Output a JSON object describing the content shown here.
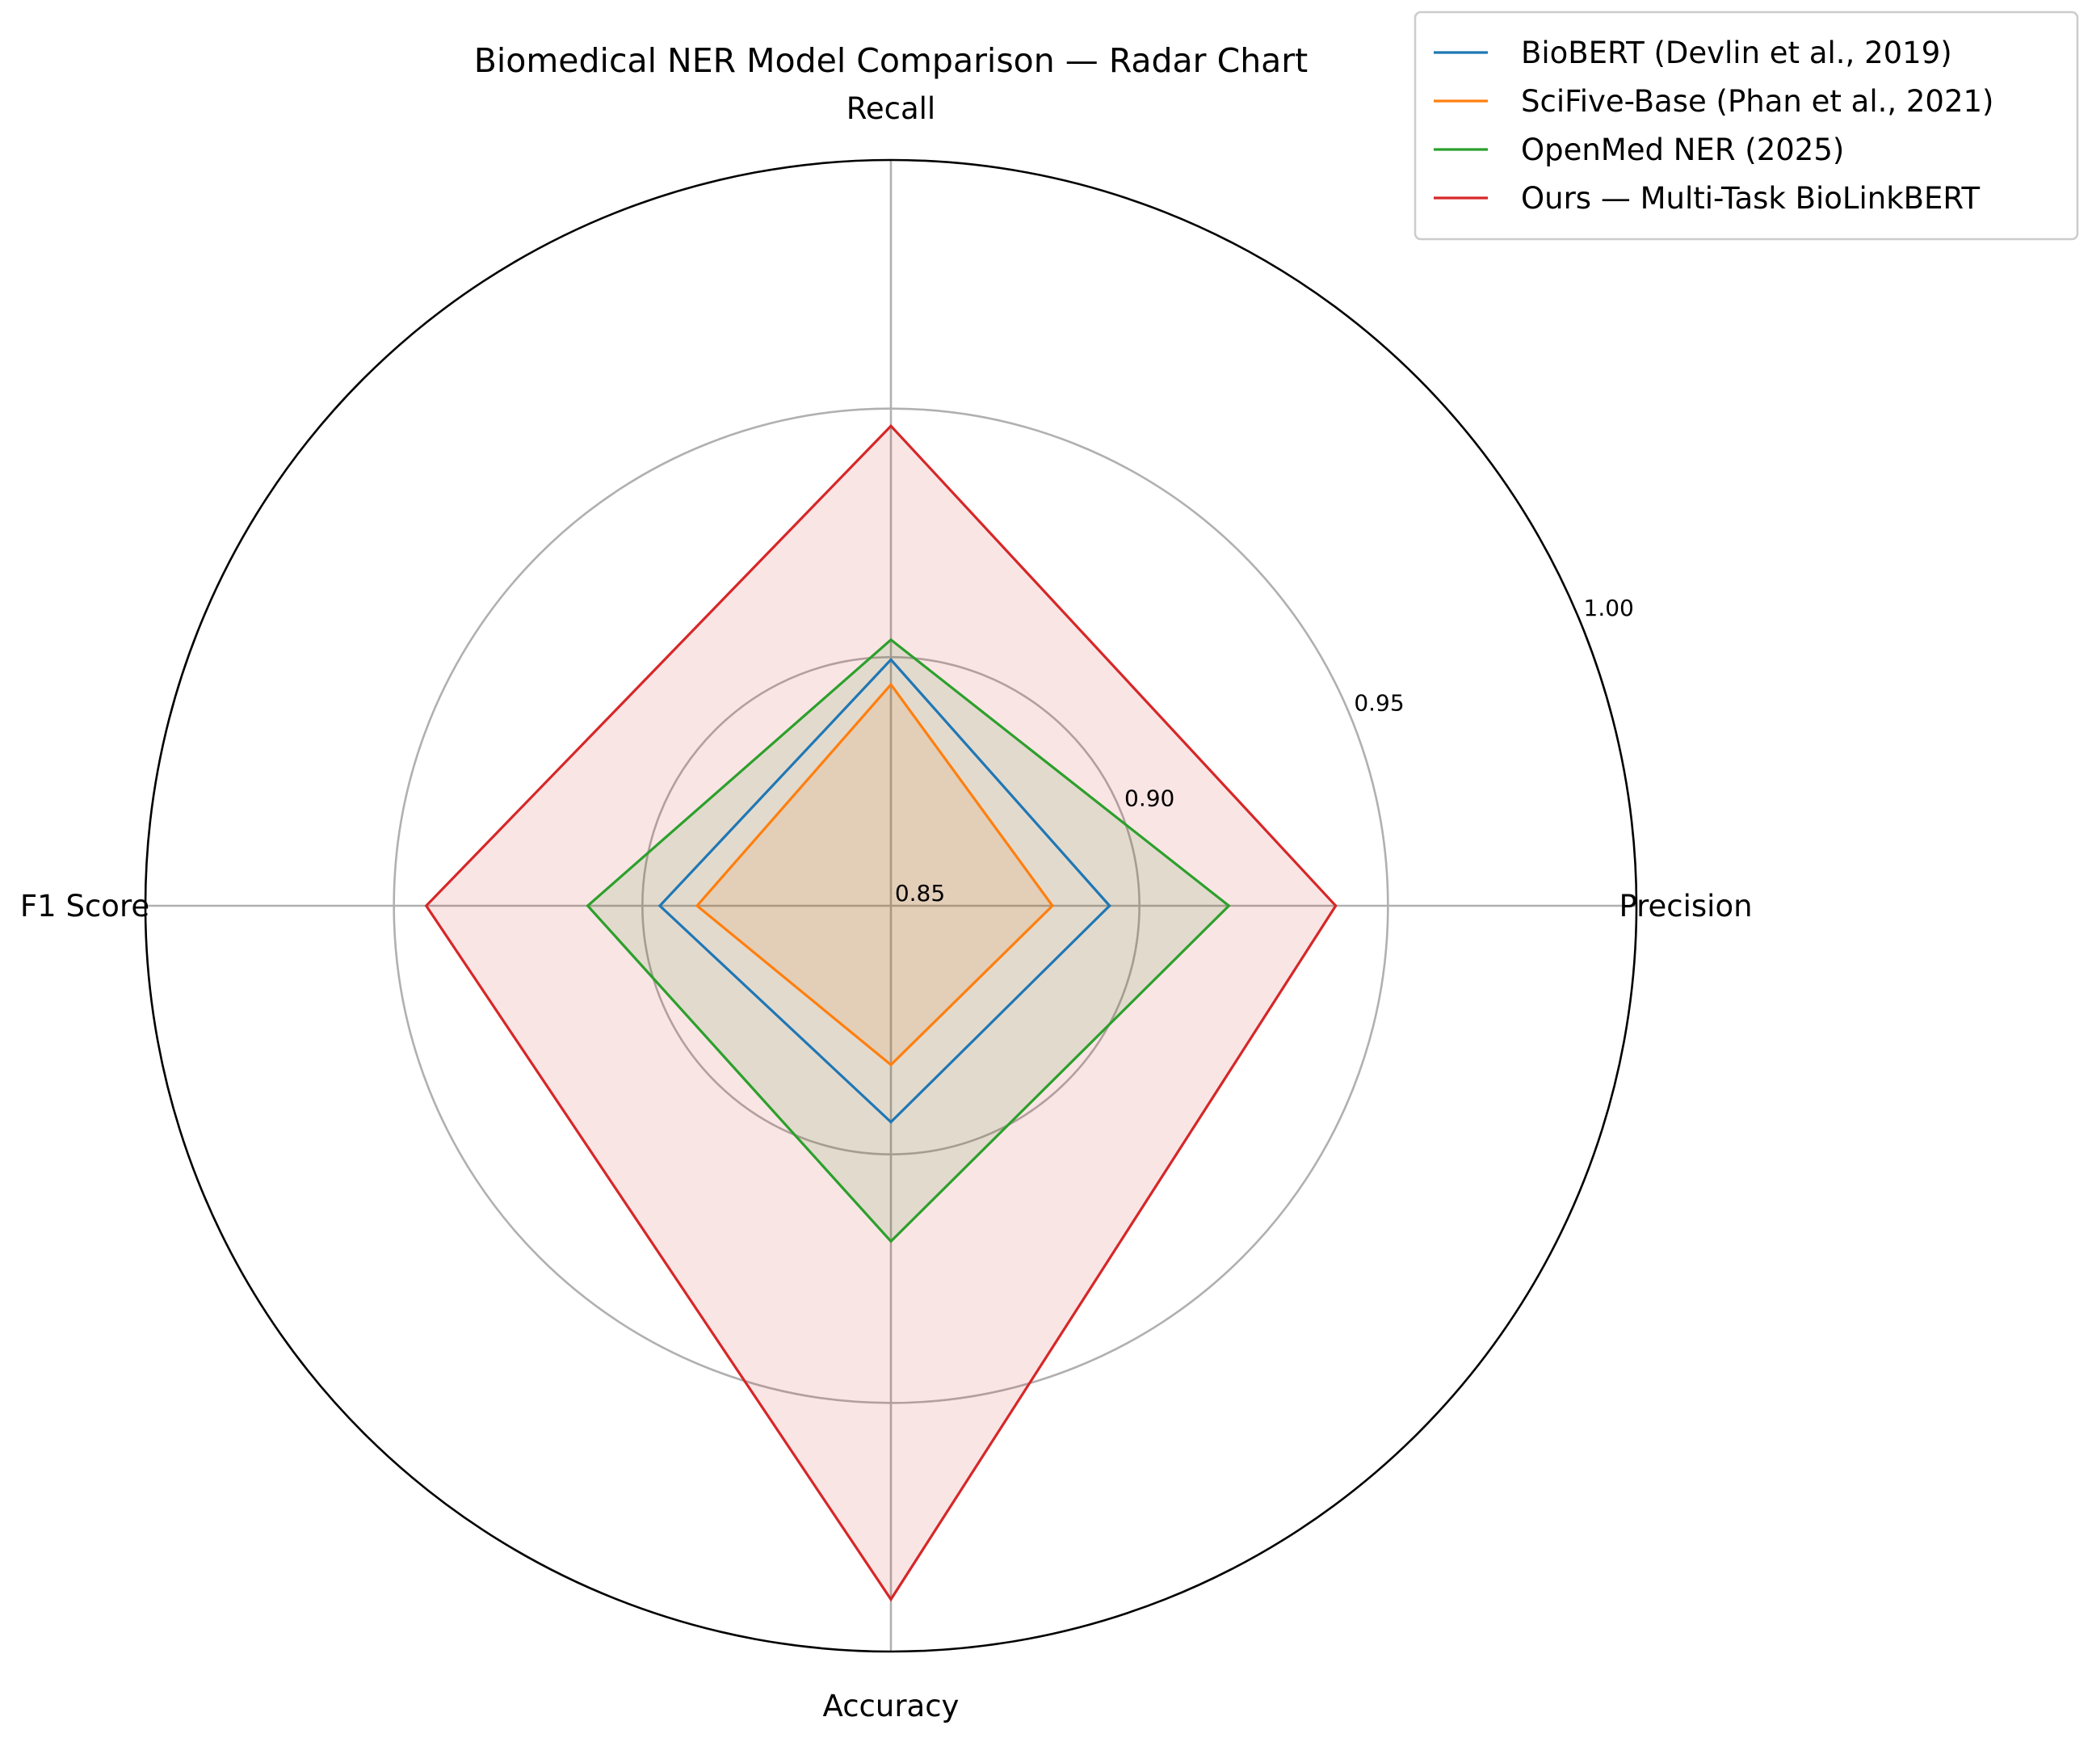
{
  "chart_data": {
    "type": "radar",
    "title": "Biomedical NER Model Comparison — Radar Chart",
    "axes": [
      "Precision",
      "Recall",
      "F1 Score",
      "Accuracy"
    ],
    "radial_range": [
      0.85,
      1.0
    ],
    "radial_ticks": [
      "0.85",
      "0.90",
      "0.95",
      "1.00"
    ],
    "radial_tick_values": [
      0.85,
      0.9,
      0.95,
      1.0
    ],
    "grid": true,
    "legend_position": "top-right",
    "series": [
      {
        "name": "BioBERT (Devlin et al., 2019)",
        "color": "#1f77b4",
        "values": [
          0.894,
          0.8995,
          0.8965,
          0.8935
        ],
        "filled": false
      },
      {
        "name": "SciFive-Base (Phan et al., 2021)",
        "color": "#ff7f0e",
        "values": [
          0.8825,
          0.8945,
          0.889,
          0.882
        ],
        "filled": true
      },
      {
        "name": "OpenMed NER (2025)",
        "color": "#2ca02c",
        "values": [
          0.918,
          0.9035,
          0.911,
          0.9175
        ],
        "filled": true
      },
      {
        "name": "Ours — Multi-Task BioLinkBERT",
        "color": "#d62728",
        "values": [
          0.9395,
          0.9465,
          0.9435,
          0.9895
        ],
        "filled": true
      }
    ]
  }
}
